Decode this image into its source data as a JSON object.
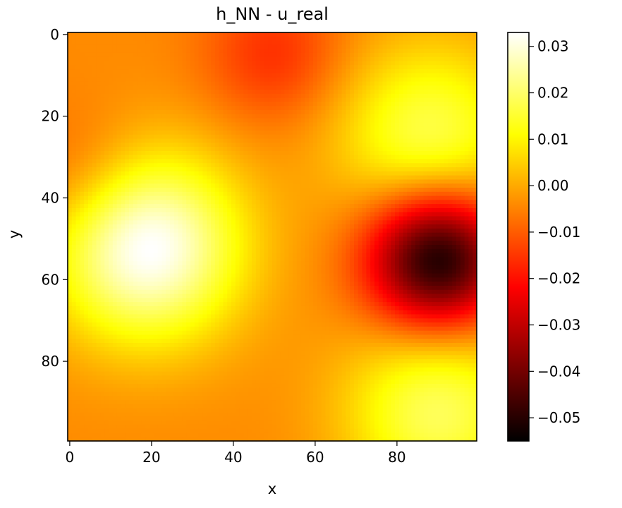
{
  "chart_data": {
    "type": "heatmap",
    "title": "h_NN - u_real",
    "xlabel": "x",
    "ylabel": "y",
    "grid_size": [
      100,
      100
    ],
    "xlim": [
      0,
      99
    ],
    "ylim": [
      99,
      0
    ],
    "x_ticks": [
      0,
      20,
      40,
      60,
      80
    ],
    "x_tick_labels": [
      "0",
      "20",
      "40",
      "60",
      "80"
    ],
    "y_ticks": [
      0,
      20,
      40,
      60,
      80
    ],
    "y_tick_labels": [
      "0",
      "20",
      "40",
      "60",
      "80"
    ],
    "colormap": "hot",
    "colormap_stops": [
      "#000000",
      "#ff0000",
      "#ffff00",
      "#ffffff"
    ],
    "value_range": [
      -0.055,
      0.033
    ],
    "colorbar": {
      "ticks": [
        0.03,
        0.02,
        0.01,
        0.0,
        -0.01,
        -0.02,
        -0.03,
        -0.04,
        -0.05
      ],
      "tick_labels": [
        "0.03",
        "0.02",
        "0.01",
        "0.00",
        "−0.01",
        "−0.02",
        "−0.03",
        "−0.04",
        "−0.05"
      ]
    },
    "baseline": -0.004,
    "features": [
      {
        "x": 19,
        "y": 52,
        "value": 0.034
      },
      {
        "x": 90,
        "y": 55,
        "value": -0.055
      },
      {
        "x": 88,
        "y": 25,
        "value": 0.018
      },
      {
        "x": 90,
        "y": 92,
        "value": 0.019
      },
      {
        "x": 50,
        "y": 5,
        "value": -0.016
      },
      {
        "x": 3,
        "y": 35,
        "value": -0.012
      }
    ]
  }
}
